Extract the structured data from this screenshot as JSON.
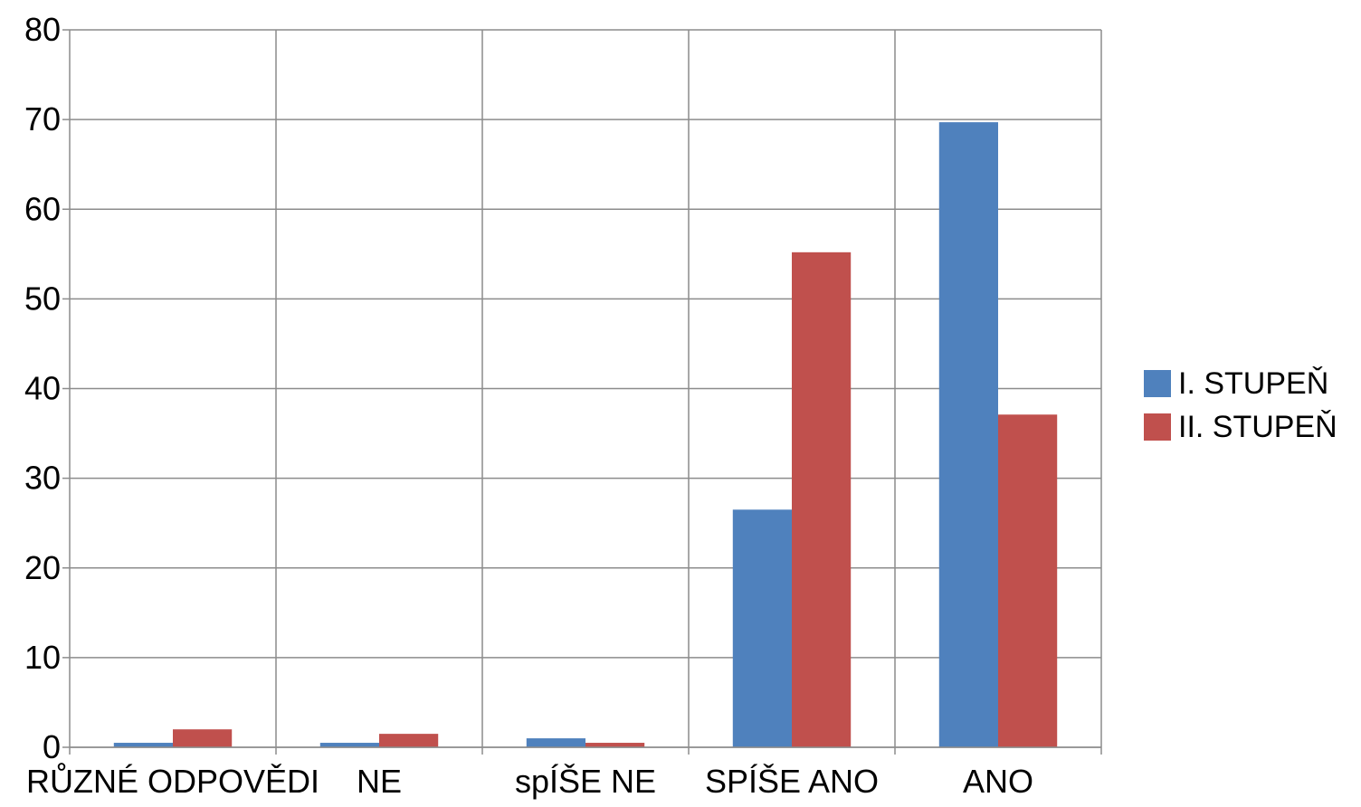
{
  "chart_data": {
    "type": "bar",
    "categories": [
      "RŮZNÉ ODPOVĚDI",
      "NE",
      "spÍŠE NE",
      "SPÍŠE ANO",
      "ANO"
    ],
    "series": [
      {
        "name": "I. STUPEŇ",
        "color": "#4F81BD",
        "values": [
          0.5,
          0.5,
          1,
          26.5,
          69.7
        ]
      },
      {
        "name": "II. STUPEŇ",
        "color": "#C0504D",
        "values": [
          2,
          1.5,
          0.5,
          55.2,
          37.1
        ]
      }
    ],
    "ylim": [
      0,
      80
    ],
    "yticks": [
      0,
      10,
      20,
      30,
      40,
      50,
      60,
      70,
      80
    ],
    "grid": true,
    "legend_position": "right"
  }
}
